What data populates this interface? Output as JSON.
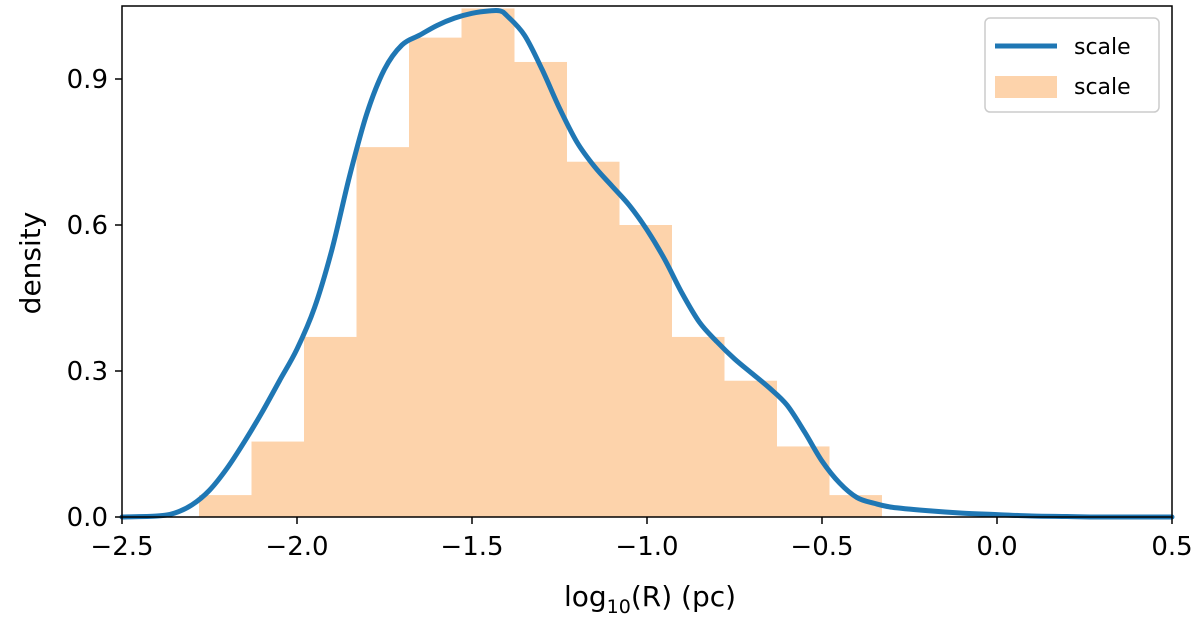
{
  "chart_data": {
    "type": "area",
    "xlabel_main": "log",
    "xlabel_sub": "10",
    "xlabel_rest": "(R) (pc)",
    "ylabel": "density",
    "xlim": [
      -2.5,
      0.5
    ],
    "ylim": [
      0.0,
      1.05
    ],
    "x_ticks": [
      -2.5,
      -2.0,
      -1.5,
      -1.0,
      -0.5,
      0.0,
      0.5
    ],
    "x_tick_labels": [
      "−2.5",
      "−2.0",
      "−1.5",
      "−1.0",
      "−0.5",
      "0.0",
      "0.5"
    ],
    "y_ticks": [
      0.0,
      0.3,
      0.6,
      0.9
    ],
    "y_tick_labels": [
      "0.0",
      "0.3",
      "0.6",
      "0.9"
    ],
    "grid": false,
    "legend_position": "top-right",
    "legend": [
      {
        "label": "scale",
        "kind": "line"
      },
      {
        "label": "scale",
        "kind": "patch"
      }
    ],
    "histogram": {
      "color": "#fdd3ab",
      "bins": [
        {
          "x0": -2.28,
          "x1": -2.13,
          "value": 0.045
        },
        {
          "x0": -2.13,
          "x1": -1.98,
          "value": 0.155
        },
        {
          "x0": -1.98,
          "x1": -1.83,
          "value": 0.37
        },
        {
          "x0": -1.83,
          "x1": -1.68,
          "value": 0.76
        },
        {
          "x0": -1.68,
          "x1": -1.53,
          "value": 0.985
        },
        {
          "x0": -1.53,
          "x1": -1.38,
          "value": 1.045
        },
        {
          "x0": -1.38,
          "x1": -1.23,
          "value": 0.935
        },
        {
          "x0": -1.23,
          "x1": -1.08,
          "value": 0.73
        },
        {
          "x0": -1.08,
          "x1": -0.93,
          "value": 0.6
        },
        {
          "x0": -0.93,
          "x1": -0.78,
          "value": 0.37
        },
        {
          "x0": -0.78,
          "x1": -0.63,
          "value": 0.28
        },
        {
          "x0": -0.63,
          "x1": -0.48,
          "value": 0.145
        },
        {
          "x0": -0.48,
          "x1": -0.33,
          "value": 0.045
        }
      ]
    },
    "kde": {
      "color": "#1f77b4",
      "x": [
        -2.5,
        -2.4,
        -2.35,
        -2.3,
        -2.25,
        -2.2,
        -2.15,
        -2.1,
        -2.05,
        -2.0,
        -1.95,
        -1.9,
        -1.85,
        -1.8,
        -1.75,
        -1.7,
        -1.65,
        -1.6,
        -1.55,
        -1.5,
        -1.45,
        -1.42,
        -1.4,
        -1.35,
        -1.3,
        -1.25,
        -1.2,
        -1.15,
        -1.1,
        -1.05,
        -1.0,
        -0.95,
        -0.9,
        -0.85,
        -0.8,
        -0.75,
        -0.7,
        -0.65,
        -0.6,
        -0.55,
        -0.5,
        -0.45,
        -0.4,
        -0.35,
        -0.3,
        -0.2,
        -0.1,
        0.0,
        0.1,
        0.2,
        0.3,
        0.5
      ],
      "y": [
        0.0,
        0.002,
        0.008,
        0.025,
        0.055,
        0.1,
        0.155,
        0.215,
        0.28,
        0.345,
        0.43,
        0.55,
        0.7,
        0.83,
        0.92,
        0.97,
        0.99,
        1.01,
        1.025,
        1.035,
        1.04,
        1.04,
        1.03,
        0.99,
        0.92,
        0.84,
        0.77,
        0.72,
        0.68,
        0.64,
        0.59,
        0.53,
        0.46,
        0.4,
        0.36,
        0.325,
        0.295,
        0.265,
        0.23,
        0.175,
        0.115,
        0.07,
        0.04,
        0.028,
        0.02,
        0.013,
        0.008,
        0.005,
        0.002,
        0.001,
        0.0,
        0.0
      ]
    }
  }
}
